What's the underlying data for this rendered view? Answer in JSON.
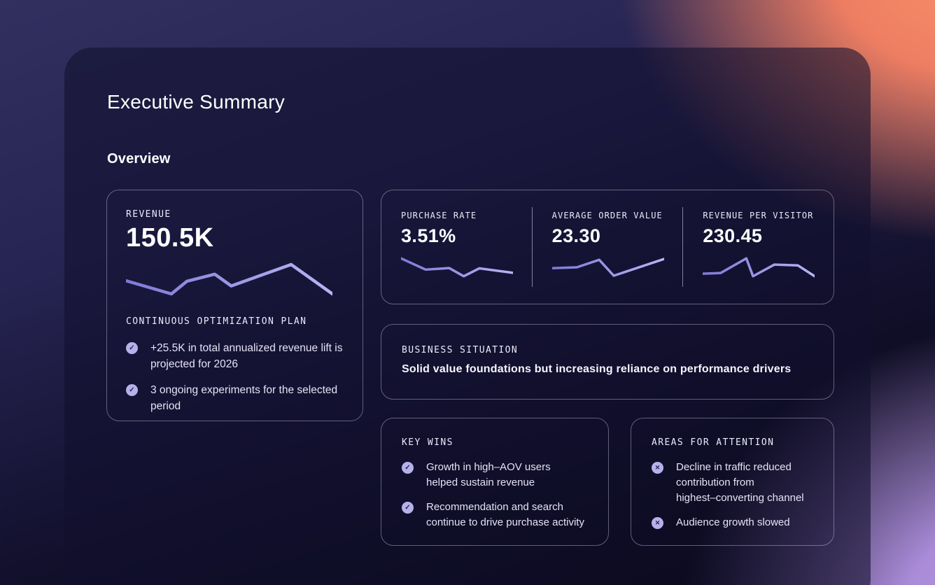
{
  "page": {
    "title": "Executive Summary",
    "section": "Overview"
  },
  "icons": {
    "check": "✓",
    "cross": "✕"
  },
  "colors": {
    "accent_spark_start": "#7f79d8",
    "accent_spark_end": "#b9b4f4",
    "icon_circle": "#b7b1ea",
    "icon_glyph": "#262153",
    "card_overlay": "rgba(17,15,45,0.58)",
    "bg_orange": "#f79168",
    "bg_purple": "#a98bd8",
    "bg_navy": "#31305f"
  },
  "revenue_card": {
    "label": "REVENUE",
    "value": "150.5K",
    "plan_label": "CONTINUOUS OPTIMIZATION PLAN",
    "plan_items": [
      "+25.5K in total annualized revenue lift is\nprojected for 2026",
      "3 ongoing experiments for the selected\nperiod"
    ]
  },
  "metrics": [
    {
      "label": "PURCHASE RATE",
      "value": "3.51%"
    },
    {
      "label": "AVERAGE ORDER VALUE",
      "value": "23.30"
    },
    {
      "label": "REVENUE PER VISITOR",
      "value": "230.45"
    }
  ],
  "business_situation": {
    "label": "BUSINESS SITUATION",
    "statement": "Solid value foundations but increasing reliance on performance drivers"
  },
  "key_wins": {
    "label": "KEY WINS",
    "items": [
      "Growth in high–AOV users\nhelped sustain revenue",
      "Recommendation and search\ncontinue to drive purchase activity"
    ]
  },
  "areas_for_attention": {
    "label": "AREAS FOR ATTENTION",
    "items": [
      "Decline in traffic reduced\ncontribution from\nhighest–converting channel",
      "Audience growth slowed"
    ]
  },
  "chart_data": [
    {
      "type": "line",
      "key": "revenue",
      "title": "REVENUE sparkline",
      "axes": "none",
      "points_norm": [
        [
          0.0,
          0.55
        ],
        [
          0.22,
          1.0
        ],
        [
          0.295,
          0.57
        ],
        [
          0.43,
          0.33
        ],
        [
          0.51,
          0.73
        ],
        [
          0.8,
          0.0
        ],
        [
          1.0,
          1.0
        ]
      ]
    },
    {
      "type": "line",
      "key": "purchase_rate",
      "title": "PURCHASE RATE sparkline",
      "axes": "none",
      "points_norm": [
        [
          0.0,
          0.0
        ],
        [
          0.22,
          0.63
        ],
        [
          0.43,
          0.54
        ],
        [
          0.56,
          1.0
        ],
        [
          0.7,
          0.56
        ],
        [
          1.0,
          0.81
        ]
      ]
    },
    {
      "type": "line",
      "key": "average_order_value",
      "title": "AVERAGE ORDER VALUE sparkline",
      "axes": "none",
      "points_norm": [
        [
          0.0,
          0.55
        ],
        [
          0.22,
          0.5
        ],
        [
          0.42,
          0.08
        ],
        [
          0.55,
          0.97
        ],
        [
          1.0,
          0.03
        ]
      ]
    },
    {
      "type": "line",
      "key": "revenue_per_visitor",
      "title": "REVENUE PER VISITOR sparkline",
      "axes": "none",
      "points_norm": [
        [
          0.0,
          0.86
        ],
        [
          0.16,
          0.82
        ],
        [
          0.39,
          0.0
        ],
        [
          0.45,
          1.0
        ],
        [
          0.64,
          0.35
        ],
        [
          0.85,
          0.39
        ],
        [
          1.0,
          1.0
        ]
      ]
    }
  ]
}
